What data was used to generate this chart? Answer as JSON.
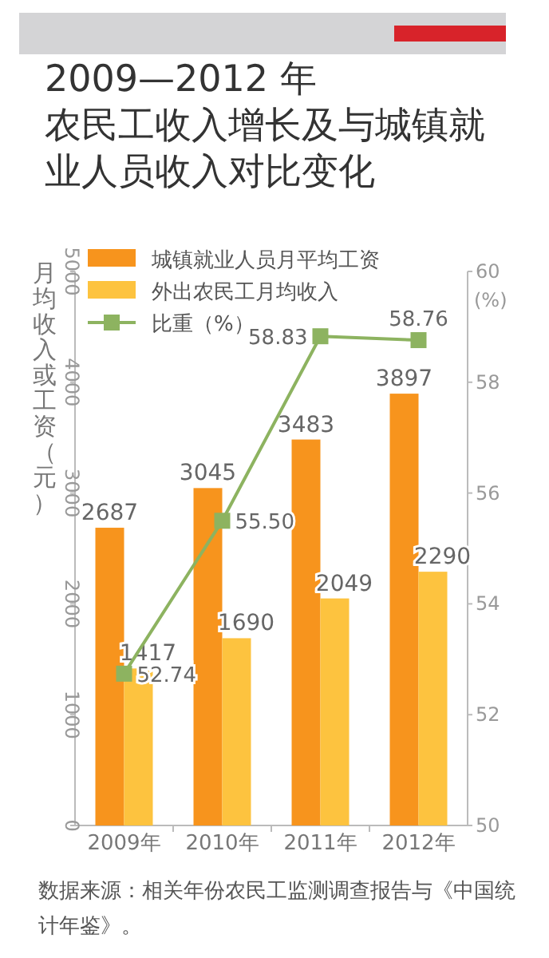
{
  "chart_data": {
    "type": "bar",
    "title": "2009—2012 年",
    "subtitle": "农民工收入增长及与城镇就业人员收入对比变化",
    "categories": [
      "2009年",
      "2010年",
      "2011年",
      "2012年"
    ],
    "series": [
      {
        "name": "城镇就业人员月平均工资",
        "color": "#f7941d",
        "values": [
          2687,
          3045,
          3483,
          3897
        ],
        "value_labels": [
          "2687",
          "3045",
          "3483",
          "3897"
        ]
      },
      {
        "name": "外出农民工月均收入",
        "color": "#fdc33f",
        "values": [
          1417,
          1690,
          2049,
          2290
        ],
        "value_labels": [
          "1417",
          "1690",
          "2049",
          "2290"
        ]
      },
      {
        "name": "比重（%）",
        "type": "line",
        "axis": "y2",
        "color": "#8db360",
        "marker": "square",
        "values": [
          52.74,
          55.5,
          58.83,
          58.76
        ],
        "value_labels": [
          "52.74",
          "55.50",
          "58.83",
          "58.76"
        ]
      }
    ],
    "ylabel": "月均收入或工资（元）",
    "y2label": "(%)",
    "ylim": [
      0,
      5000
    ],
    "yticks": [
      0,
      1000,
      2000,
      3000,
      4000,
      5000
    ],
    "y2lim": [
      50,
      60
    ],
    "y2ticks": [
      50,
      52,
      54,
      56,
      58,
      60
    ],
    "legend": "top left",
    "grid": false,
    "annotations": [
      "数据来源：相关年份农民工监测调查报告与《中国统计年鉴》。"
    ]
  }
}
